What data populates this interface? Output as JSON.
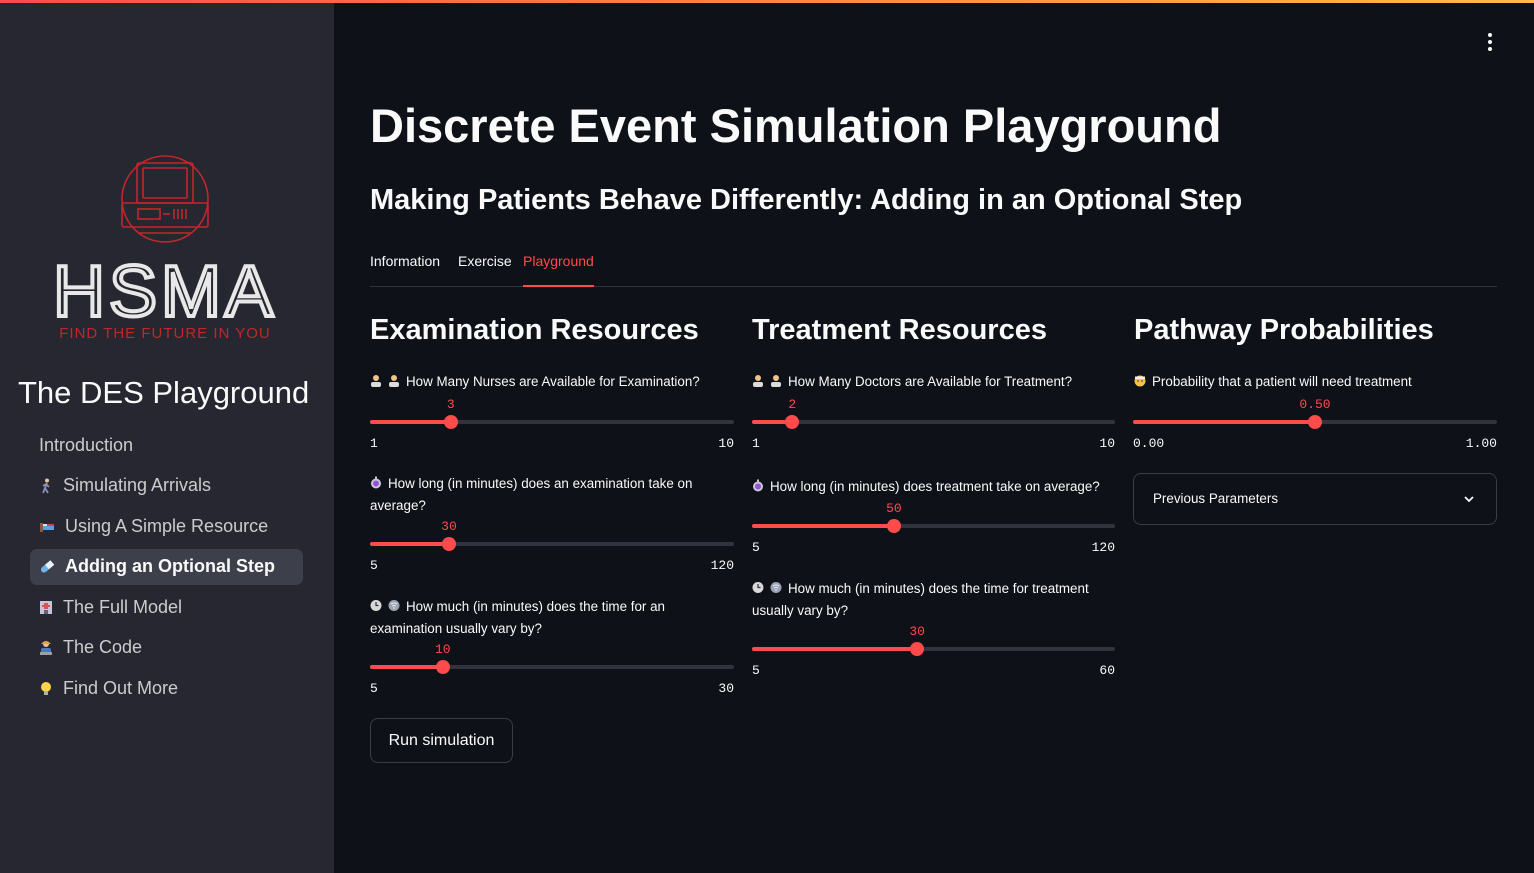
{
  "sidebar": {
    "logo_text": "HSMA",
    "logo_tagline": "FIND THE FUTURE IN YOU",
    "app_title": "The DES Playground",
    "items": [
      {
        "label": "Introduction",
        "icon": "none",
        "active": false
      },
      {
        "label": "Simulating Arrivals",
        "icon": "walking-person-icon",
        "active": false
      },
      {
        "label": "Using A Simple Resource",
        "icon": "bed-icon",
        "active": false
      },
      {
        "label": "Adding an Optional Step",
        "icon": "pill-icon",
        "active": true
      },
      {
        "label": "The Full Model",
        "icon": "hospital-icon",
        "active": false
      },
      {
        "label": "The Code",
        "icon": "technologist-icon",
        "active": false
      },
      {
        "label": "Find Out More",
        "icon": "lightbulb-icon",
        "active": false
      }
    ]
  },
  "header": {
    "title": "Discrete Event Simulation Playground",
    "subtitle": "Making Patients Behave Differently: Adding in an Optional Step"
  },
  "tabs": [
    {
      "label": "Information",
      "active": false
    },
    {
      "label": "Exercise",
      "active": false
    },
    {
      "label": "Playground",
      "active": true
    }
  ],
  "columns": {
    "examination": {
      "title": "Examination Resources",
      "nurses": {
        "label": "How Many Nurses are Available for Examination?",
        "value": "3",
        "min": "1",
        "max": "10"
      },
      "exam_time": {
        "label": "How long (in minutes) does an examination take on average?",
        "value": "30",
        "min": "5",
        "max": "120"
      },
      "exam_vary": {
        "label": "How much (in minutes) does the time for an examination usually vary by?",
        "value": "10",
        "min": "5",
        "max": "30"
      }
    },
    "treatment": {
      "title": "Treatment Resources",
      "doctors": {
        "label": "How Many Doctors are Available for Treatment?",
        "value": "2",
        "min": "1",
        "max": "10"
      },
      "treat_time": {
        "label": "How long (in minutes) does treatment take on average?",
        "value": "50",
        "min": "5",
        "max": "120"
      },
      "treat_vary": {
        "label": "How much (in minutes) does the time for treatment usually vary by?",
        "value": "30",
        "min": "5",
        "max": "60"
      }
    },
    "pathway": {
      "title": "Pathway Probabilities",
      "prob": {
        "label": "Probability that a patient will need treatment",
        "value": "0.50",
        "min": "0.00",
        "max": "1.00"
      },
      "expander_label": "Previous Parameters"
    }
  },
  "run_button": "Run simulation",
  "colors": {
    "accent": "#ff4b4b",
    "sidebar_bg": "#262730",
    "main_bg": "#0e1117"
  }
}
